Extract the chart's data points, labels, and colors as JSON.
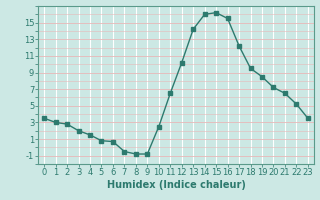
{
  "x": [
    0,
    1,
    2,
    3,
    4,
    5,
    6,
    7,
    8,
    9,
    10,
    11,
    12,
    13,
    14,
    15,
    16,
    17,
    18,
    19,
    20,
    21,
    22,
    23
  ],
  "y": [
    3.5,
    3.0,
    2.8,
    2.0,
    1.5,
    0.8,
    0.7,
    -0.5,
    -0.8,
    -0.8,
    2.5,
    6.5,
    10.2,
    14.2,
    16.0,
    16.2,
    15.5,
    12.2,
    9.5,
    8.5,
    7.2,
    6.5,
    5.2,
    3.5
  ],
  "line_color": "#2d7a6e",
  "marker": "s",
  "markersize": 2.5,
  "linewidth": 1.0,
  "bg_color": "#cce8e4",
  "grid_color_vertical": "#ffffff",
  "grid_color_horizontal": "#e8b8b8",
  "xlabel": "Humidex (Indice chaleur)",
  "xlabel_fontsize": 7,
  "ytick_labels": [
    "-1",
    "1",
    "3",
    "5",
    "7",
    "9",
    "11",
    "13",
    "15"
  ],
  "yticks": [
    -1,
    1,
    3,
    5,
    7,
    9,
    11,
    13,
    15
  ],
  "ylim": [
    -2.0,
    17.0
  ],
  "xlim": [
    -0.5,
    23.5
  ],
  "tick_fontsize": 6
}
